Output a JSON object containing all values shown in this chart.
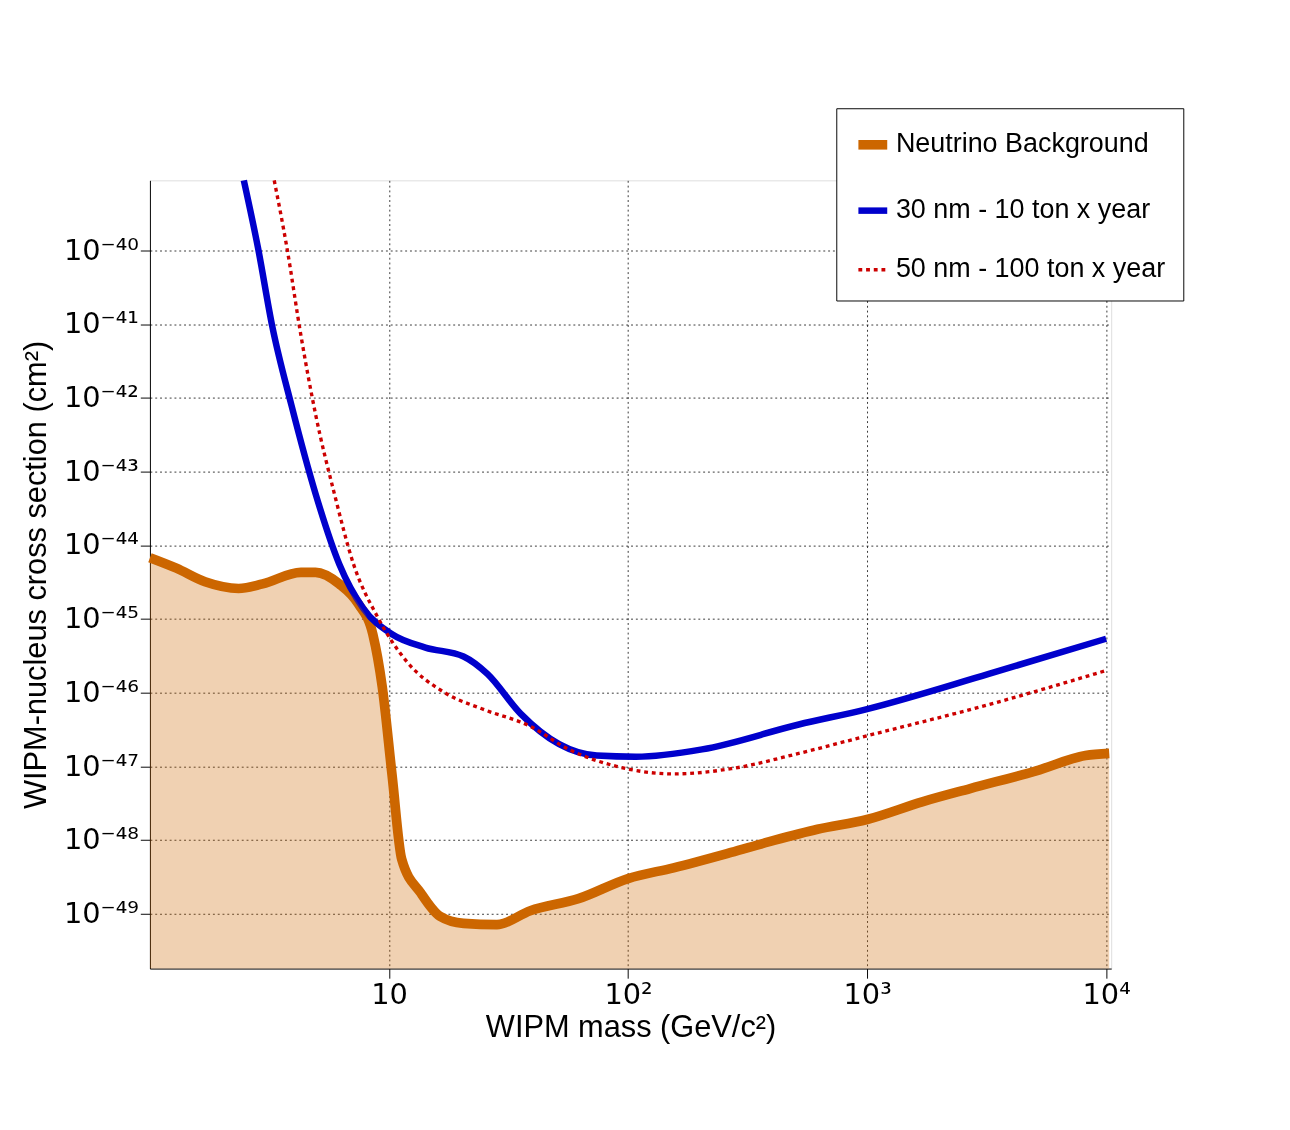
{
  "chart_data": {
    "type": "line",
    "xlabel": "WIPM mass (GeV/c²)",
    "ylabel": "WIPM-nucleus cross section (cm²)",
    "log": "xy",
    "grid": true,
    "legend": "top right",
    "marker": "none",
    "xlim": [
      1,
      10500
    ],
    "ylim": [
      1.8e-50,
      9e-40
    ],
    "xticks": [
      10,
      {
        "value": 100,
        "label": "10²"
      },
      {
        "value": 1000,
        "label": "10³"
      },
      {
        "value": 10000,
        "label": "10⁴"
      }
    ],
    "yticks": [
      {
        "value": 1e-49,
        "label": "10⁻⁴⁹"
      },
      {
        "value": 1e-48,
        "label": "10⁻⁴⁸"
      },
      {
        "value": 1e-47,
        "label": "10⁻⁴⁷"
      },
      {
        "value": 1e-46,
        "label": "10⁻⁴⁶"
      },
      {
        "value": 1e-45,
        "label": "10⁻⁴⁵"
      },
      {
        "value": 1e-44,
        "label": "10⁻⁴⁴"
      },
      {
        "value": 1e-43,
        "label": "10⁻⁴³"
      },
      {
        "value": 1e-42,
        "label": "10⁻⁴²"
      },
      {
        "value": 1e-41,
        "label": "10⁻⁴¹"
      },
      {
        "value": 1e-40,
        "label": "10⁻⁴⁰"
      }
    ],
    "series": [
      {
        "name": "Neutrino Background",
        "type": "area",
        "color": "#cc6600",
        "line_style": "solid",
        "x": [
          1,
          1.29,
          1.7,
          2.35,
          2.96,
          4.28,
          4.93,
          6.19,
          7.45,
          8.56,
          9.37,
          10.3,
          11.3,
          13.6,
          16.3,
          20.5,
          28.3,
          39,
          62,
          100,
          155,
          270,
          390,
          620,
          1000,
          1700,
          2700,
          5100,
          8200,
          10300
        ],
        "values": [
          6.8e-45,
          4.9e-45,
          3.2e-45,
          2.6e-45,
          3e-45,
          4.3e-45,
          4.3e-45,
          3e-45,
          1.6e-45,
          6.2e-46,
          1.2e-46,
          7.6e-48,
          5.5e-49,
          1.9e-49,
          9.3e-50,
          7.4e-50,
          7.1e-50,
          1.1e-49,
          1.6e-49,
          3e-49,
          4.2e-49,
          6.8e-49,
          9.5e-49,
          1.4e-48,
          1.9e-48,
          3.3e-48,
          5e-48,
          8.7e-48,
          1.4e-47,
          1.5e-47
        ]
      },
      {
        "name": "30 nm - 10 ton x year",
        "type": "line",
        "color": "#0000cc",
        "line_style": "solid",
        "x": [
          2.47,
          2.83,
          3.25,
          3.91,
          4.93,
          6.19,
          7.8,
          10.3,
          14.2,
          20.5,
          25.8,
          35.5,
          51.5,
          74,
          108,
          204,
          518,
          1000,
          3230,
          10000
        ],
        "values": [
          9e-40,
          1.1e-40,
          9.3e-42,
          7.9e-43,
          5e-44,
          5.6e-45,
          1.4e-45,
          6.2e-46,
          4.1e-46,
          3.1e-46,
          1.8e-46,
          5.2e-47,
          2e-47,
          1.4e-47,
          1.35e-47,
          1.7e-47,
          3.7e-47,
          6e-47,
          1.8e-46,
          5.4e-46
        ]
      },
      {
        "name": "50 nm - 100 ton x year",
        "type": "line",
        "color": "#cc0000",
        "line_style": "dotted",
        "x": [
          3.31,
          3.74,
          4.28,
          4.93,
          5.91,
          7.1,
          8.95,
          11.8,
          17.1,
          24.6,
          39,
          56.5,
          89.5,
          155,
          270,
          518,
          1000,
          3230,
          10000
        ],
        "values": [
          9e-40,
          1.1e-40,
          7.1e-42,
          6e-43,
          5e-44,
          5.6e-45,
          1.07e-45,
          2.7e-46,
          1e-46,
          6e-47,
          3.5e-47,
          1.7e-47,
          1e-47,
          7.9e-48,
          9.3e-48,
          1.5e-47,
          2.6e-47,
          6.9e-47,
          2e-46
        ]
      }
    ]
  }
}
